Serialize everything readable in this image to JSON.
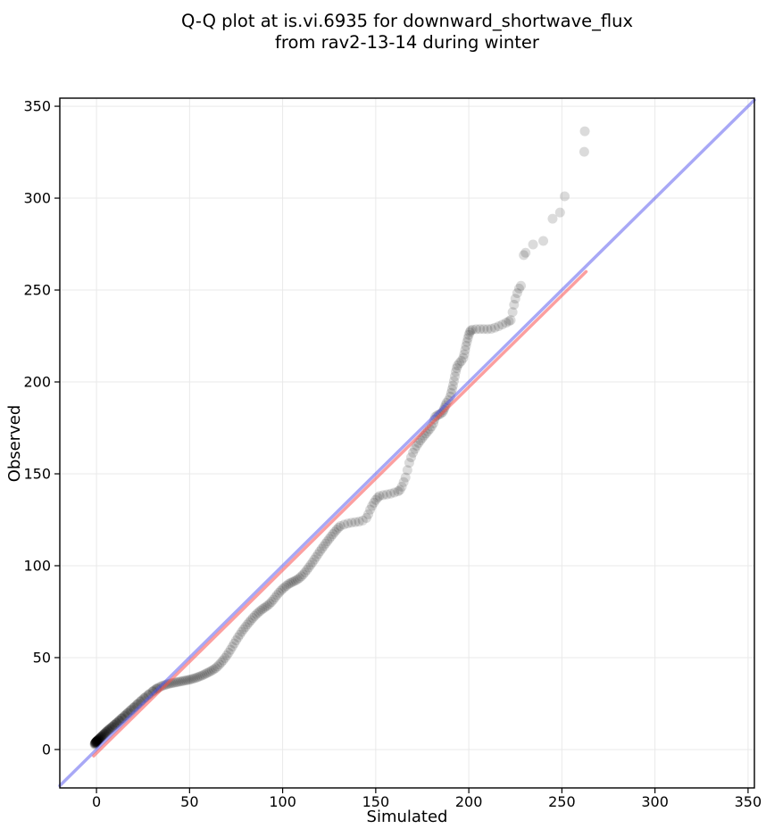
{
  "chart_data": {
    "type": "scatter",
    "title": "Q-Q plot at is.vi.6935 for downward_shortwave_flux from rav2-13-14 during winter",
    "title_line1": "Q-Q plot at is.vi.6935 for downward_shortwave_flux",
    "title_line2": "from rav2-13-14 during winter",
    "xlabel": "Simulated",
    "ylabel": "Observed",
    "xlim": [
      -19.7,
      353.4
    ],
    "ylim": [
      -20.9,
      354.4
    ],
    "xticks": [
      0,
      50,
      100,
      150,
      200,
      250,
      300,
      350
    ],
    "yticks": [
      0,
      50,
      100,
      150,
      200,
      250,
      300,
      350
    ],
    "grid": true,
    "grid_color": "#e9e9e9",
    "background": "#ffffff",
    "spine_color": "#000000",
    "scatter": {
      "name": "qq-quantile-points",
      "color": "#000000",
      "alpha": 0.14,
      "radius": 5.5,
      "points": [
        [
          -1,
          2.8
        ],
        [
          -0.9,
          3.1
        ],
        [
          -0.8,
          3.3
        ],
        [
          -0.7,
          3.5
        ],
        [
          -0.6,
          3.6
        ],
        [
          -0.5,
          3.8
        ],
        [
          -0.4,
          3.9
        ],
        [
          -0.3,
          4
        ],
        [
          -0.2,
          4.1
        ],
        [
          -0.1,
          4.2
        ],
        [
          0,
          4.3
        ],
        [
          0.1,
          4.4
        ],
        [
          0.2,
          4.5
        ],
        [
          0.3,
          4.6
        ],
        [
          0.4,
          4.7
        ],
        [
          0.5,
          4.8
        ],
        [
          0.7,
          5
        ],
        [
          0.9,
          5.2
        ],
        [
          1.1,
          5.4
        ],
        [
          1.3,
          5.6
        ],
        [
          1.5,
          5.8
        ],
        [
          1.8,
          6.1
        ],
        [
          2.1,
          6.4
        ],
        [
          2.4,
          6.7
        ],
        [
          2.7,
          7
        ],
        [
          3,
          7.3
        ],
        [
          3.4,
          7.7
        ],
        [
          3.8,
          8.1
        ],
        [
          4.2,
          8.5
        ],
        [
          4.6,
          8.9
        ],
        [
          5,
          9.3
        ],
        [
          5.5,
          9.8
        ],
        [
          6,
          10.2
        ],
        [
          6.5,
          10.7
        ],
        [
          7,
          11.1
        ],
        [
          7.6,
          11.6
        ],
        [
          8.2,
          12.1
        ],
        [
          8.8,
          12.6
        ],
        [
          9.4,
          13.2
        ],
        [
          10,
          13.7
        ],
        [
          10.6,
          14.2
        ],
        [
          11.2,
          14.8
        ],
        [
          11.9,
          15.4
        ],
        [
          12.6,
          16
        ],
        [
          13.3,
          16.7
        ],
        [
          14,
          17.3
        ],
        [
          14.8,
          18
        ],
        [
          15.6,
          18.8
        ],
        [
          16.4,
          19.5
        ],
        [
          17.2,
          20.2
        ],
        [
          18,
          21
        ],
        [
          18.9,
          21.8
        ],
        [
          19.8,
          22.6
        ],
        [
          20.7,
          23.4
        ],
        [
          21.6,
          24.3
        ],
        [
          22.5,
          25.1
        ],
        [
          23.5,
          26
        ],
        [
          24.5,
          26.9
        ],
        [
          25.5,
          27.8
        ],
        [
          26.6,
          28.7
        ],
        [
          27.7,
          29.6
        ],
        [
          28.8,
          30.5
        ],
        [
          30,
          31.4
        ],
        [
          31,
          32.2
        ],
        [
          32,
          32.9
        ],
        [
          33,
          33.5
        ],
        [
          34,
          34
        ],
        [
          35,
          34.5
        ],
        [
          36,
          34.9
        ],
        [
          37,
          35.2
        ],
        [
          38,
          35.5
        ],
        [
          39,
          35.8
        ],
        [
          40,
          36
        ],
        [
          41,
          36.2
        ],
        [
          42,
          36.4
        ],
        [
          43,
          36.6
        ],
        [
          44,
          36.8
        ],
        [
          45,
          37
        ],
        [
          46,
          37.2
        ],
        [
          47,
          37.4
        ],
        [
          48,
          37.6
        ],
        [
          49,
          37.8
        ],
        [
          50,
          38
        ],
        [
          51,
          38.3
        ],
        [
          52,
          38.6
        ],
        [
          53,
          38.9
        ],
        [
          54,
          39.2
        ],
        [
          55,
          39.6
        ],
        [
          56,
          40
        ],
        [
          57,
          40.4
        ],
        [
          58,
          40.9
        ],
        [
          59,
          41.4
        ],
        [
          60,
          41.9
        ],
        [
          61,
          42.4
        ],
        [
          62,
          43
        ],
        [
          63,
          43.6
        ],
        [
          64,
          44.3
        ],
        [
          65,
          45.2
        ],
        [
          66,
          46.2
        ],
        [
          67,
          47.3
        ],
        [
          68,
          48.5
        ],
        [
          69,
          49.8
        ],
        [
          70,
          51.2
        ],
        [
          71,
          52.7
        ],
        [
          72,
          54.3
        ],
        [
          73,
          56
        ],
        [
          74,
          57.7
        ],
        [
          75,
          59.4
        ],
        [
          76,
          61
        ],
        [
          77,
          62.5
        ],
        [
          78,
          64
        ],
        [
          79,
          65.4
        ],
        [
          80,
          66.7
        ],
        [
          81,
          68
        ],
        [
          82,
          69.2
        ],
        [
          83,
          70.4
        ],
        [
          84,
          71.6
        ],
        [
          85,
          72.7
        ],
        [
          86,
          73.7
        ],
        [
          87,
          74.6
        ],
        [
          88,
          75.5
        ],
        [
          89,
          76.3
        ],
        [
          90,
          77
        ],
        [
          91,
          77.7
        ],
        [
          92,
          78.4
        ],
        [
          93,
          79.3
        ],
        [
          94,
          80.3
        ],
        [
          95,
          81.5
        ],
        [
          96,
          82.8
        ],
        [
          97,
          84.1
        ],
        [
          98,
          85.3
        ],
        [
          99,
          86.4
        ],
        [
          100,
          87.4
        ],
        [
          101,
          88.3
        ],
        [
          102,
          89.1
        ],
        [
          103,
          89.9
        ],
        [
          104,
          90.5
        ],
        [
          105,
          91
        ],
        [
          106,
          91.5
        ],
        [
          107,
          92
        ],
        [
          108,
          92.6
        ],
        [
          109,
          93.3
        ],
        [
          110,
          94.2
        ],
        [
          111,
          95.2
        ],
        [
          112,
          96.4
        ],
        [
          113,
          97.7
        ],
        [
          114,
          99
        ],
        [
          115,
          100.4
        ],
        [
          116,
          101.8
        ],
        [
          117,
          103.3
        ],
        [
          118,
          104.8
        ],
        [
          119,
          106.3
        ],
        [
          120,
          107.8
        ],
        [
          121,
          109.2
        ],
        [
          122,
          110.6
        ],
        [
          123,
          112
        ],
        [
          124,
          113.3
        ],
        [
          125,
          114.6
        ],
        [
          126,
          115.9
        ],
        [
          127,
          117.2
        ],
        [
          128,
          118.4
        ],
        [
          129,
          119.6
        ],
        [
          130,
          120.7
        ],
        [
          131,
          121.6
        ],
        [
          133,
          122.4
        ],
        [
          135,
          123
        ],
        [
          137,
          123.4
        ],
        [
          139,
          123.7
        ],
        [
          141,
          124
        ],
        [
          143,
          124.6
        ],
        [
          145,
          126
        ],
        [
          146,
          128
        ],
        [
          147,
          130.5
        ],
        [
          148,
          132.5
        ],
        [
          149,
          134.3
        ],
        [
          150,
          135.8
        ],
        [
          151,
          137
        ],
        [
          152,
          137.9
        ],
        [
          154,
          138.4
        ],
        [
          156,
          138.8
        ],
        [
          158,
          139.2
        ],
        [
          160,
          139.8
        ],
        [
          162,
          140.5
        ],
        [
          163,
          141.2
        ],
        [
          164,
          143
        ],
        [
          165,
          145.5
        ],
        [
          166,
          148
        ],
        [
          167,
          152
        ],
        [
          168,
          156
        ],
        [
          169,
          159
        ],
        [
          170,
          161.5
        ],
        [
          171,
          163.5
        ],
        [
          172,
          165.3
        ],
        [
          173,
          166.8
        ],
        [
          174,
          168.2
        ],
        [
          175,
          169.5
        ],
        [
          176,
          170.8
        ],
        [
          177,
          172
        ],
        [
          178,
          173.2
        ],
        [
          179,
          174.4
        ],
        [
          180,
          175.8
        ],
        [
          181,
          177.5
        ],
        [
          181.5,
          179.5
        ],
        [
          182,
          181
        ],
        [
          183,
          181.8
        ],
        [
          184,
          182.3
        ],
        [
          185,
          182.8
        ],
        [
          186,
          183.6
        ],
        [
          186.5,
          184.8
        ],
        [
          187,
          186
        ],
        [
          187.5,
          187.3
        ],
        [
          188,
          188.6
        ],
        [
          189,
          190
        ],
        [
          190,
          192
        ],
        [
          190.5,
          194
        ],
        [
          191,
          196
        ],
        [
          191.5,
          198
        ],
        [
          192,
          200.5
        ],
        [
          192.5,
          203
        ],
        [
          193,
          205.5
        ],
        [
          193.5,
          207.5
        ],
        [
          194,
          209
        ],
        [
          195,
          210.3
        ],
        [
          196,
          211.4
        ],
        [
          197,
          213
        ],
        [
          197.5,
          215
        ],
        [
          198,
          217.3
        ],
        [
          198.5,
          219.6
        ],
        [
          199,
          221.8
        ],
        [
          199.5,
          223.8
        ],
        [
          200,
          225.6
        ],
        [
          200.5,
          227
        ],
        [
          201,
          228
        ],
        [
          202,
          228.5
        ],
        [
          204,
          228.7
        ],
        [
          206,
          228.8
        ],
        [
          208,
          228.8
        ],
        [
          210,
          228.7
        ],
        [
          212,
          228.9
        ],
        [
          214,
          229.5
        ],
        [
          216,
          230.3
        ],
        [
          218,
          231.2
        ],
        [
          220,
          232.2
        ],
        [
          221.5,
          233
        ],
        [
          222.5,
          233.6
        ],
        [
          223.5,
          238
        ],
        [
          224.3,
          242
        ],
        [
          225,
          245.3
        ],
        [
          226,
          248.3
        ],
        [
          227,
          250.8
        ],
        [
          228,
          252.3
        ],
        [
          229.5,
          269
        ],
        [
          230.5,
          270.3
        ],
        [
          234.5,
          274.8
        ],
        [
          240,
          276.7
        ],
        [
          245,
          288.8
        ],
        [
          249,
          292.2
        ],
        [
          251.5,
          301
        ],
        [
          262,
          325.2
        ],
        [
          262.3,
          336.4
        ],
        [
          -0.7,
          3.4
        ],
        [
          -0.45,
          3.85
        ],
        [
          -0.15,
          4.15
        ],
        [
          0.15,
          4.45
        ],
        [
          0.45,
          4.75
        ],
        [
          0.8,
          5.1
        ],
        [
          1.2,
          5.5
        ],
        [
          1.7,
          6
        ],
        [
          2.2,
          6.5
        ],
        [
          2.8,
          7.1
        ],
        [
          3.5,
          7.8
        ],
        [
          4.3,
          8.6
        ],
        [
          5.2,
          9.5
        ],
        [
          6.2,
          10.4
        ],
        [
          7.2,
          11.3
        ],
        [
          8.4,
          12.3
        ],
        [
          9.6,
          13.4
        ],
        [
          10.9,
          14.5
        ],
        [
          12.2,
          15.7
        ],
        [
          13.6,
          16.9
        ],
        [
          15.1,
          18.3
        ],
        [
          16.7,
          19.8
        ],
        [
          18.4,
          21.4
        ],
        [
          20.2,
          23
        ],
        [
          22,
          24.7
        ],
        [
          23.9,
          26.4
        ],
        [
          25.9,
          28.2
        ],
        [
          28,
          29.9
        ],
        [
          30.4,
          31.7
        ],
        [
          32.4,
          33.2
        ]
      ]
    },
    "lines": [
      {
        "name": "identity-line",
        "color": "#5252ee",
        "alpha": 0.5,
        "width": 3.5,
        "x1": -19.7,
        "y1": -19.7,
        "x2": 353.4,
        "y2": 353.4
      },
      {
        "name": "fit-line",
        "color": "#fa5050",
        "alpha": 0.55,
        "width": 3.5,
        "x1": -1.5,
        "y1": -3.5,
        "x2": 263,
        "y2": 260
      }
    ]
  }
}
